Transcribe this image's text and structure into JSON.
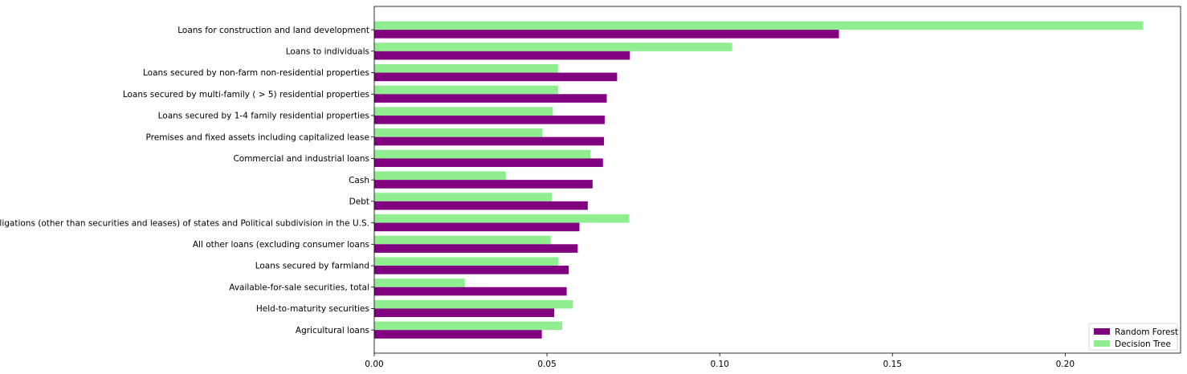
{
  "chart_data": {
    "type": "bar",
    "orientation": "horizontal",
    "categories": [
      "Loans for construction and land development",
      "Loans to individuals",
      "Loans secured by non-farm non-residential properties",
      "Loans secured by multi-family ( > 5) residential properties",
      "Loans secured by 1-4 family residential properties",
      "Premises and fixed assets including capitalized lease",
      "Commercial and industrial loans",
      "Cash",
      "Debt",
      "Obligations (other than securities and leases) of states and Political subdivision in the U.S.",
      "All other loans (excluding consumer loans",
      "Loans secured by farmland",
      "Available-for-sale securities, total",
      "Held-to-maturity securities",
      "Agricultural loans"
    ],
    "series": [
      {
        "name": "Random Forest",
        "color": "#800080",
        "values": [
          0.1345,
          0.074,
          0.0703,
          0.0673,
          0.0667,
          0.0665,
          0.0662,
          0.0632,
          0.0618,
          0.0594,
          0.0589,
          0.0563,
          0.0557,
          0.0521,
          0.0485
        ]
      },
      {
        "name": "Decision Tree",
        "color": "#90ee90",
        "values": [
          0.2226,
          0.1036,
          0.0532,
          0.0532,
          0.0517,
          0.0487,
          0.0626,
          0.0381,
          0.0514,
          0.0738,
          0.0511,
          0.0533,
          0.0262,
          0.0575,
          0.0544
        ]
      }
    ],
    "title": "",
    "xlabel": "",
    "ylabel": "",
    "xlim": [
      0,
      0.2334
    ],
    "xticks": [
      0.0,
      0.05,
      0.1,
      0.15,
      0.2
    ],
    "xtick_labels": [
      "0.00",
      "0.05",
      "0.10",
      "0.15",
      "0.20"
    ],
    "grid": false,
    "legend_position": "bottom-right"
  }
}
